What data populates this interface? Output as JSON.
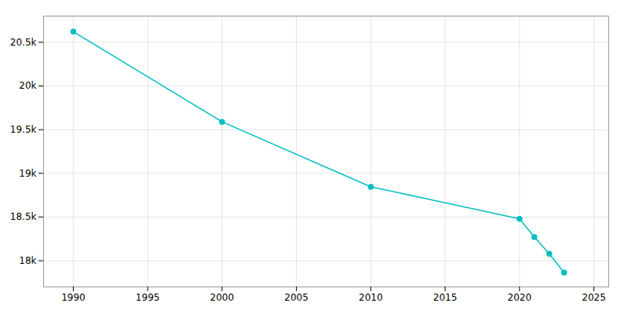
{
  "chart_data": {
    "type": "line",
    "x": [
      1990,
      2000,
      2010,
      2020,
      2021,
      2022,
      2023
    ],
    "values": [
      20622,
      19590,
      18846,
      18480,
      18270,
      18080,
      17864
    ],
    "color": "#00BFBF",
    "marker": "circle",
    "line_style": "solid",
    "xlim": [
      1988,
      2026
    ],
    "xticks": [
      1990,
      1995,
      2000,
      2005,
      2010,
      2015,
      2020,
      2025
    ],
    "ylim": [
      17700,
      20800
    ],
    "yticks": [
      {
        "value": 18000,
        "label": "18k"
      },
      {
        "value": 18500,
        "label": "18.5k"
      },
      {
        "value": 19000,
        "label": "19k"
      },
      {
        "value": 19500,
        "label": "19.5k"
      },
      {
        "value": 20000,
        "label": "20k"
      },
      {
        "value": 20500,
        "label": "20.5k"
      }
    ],
    "grid": true
  }
}
